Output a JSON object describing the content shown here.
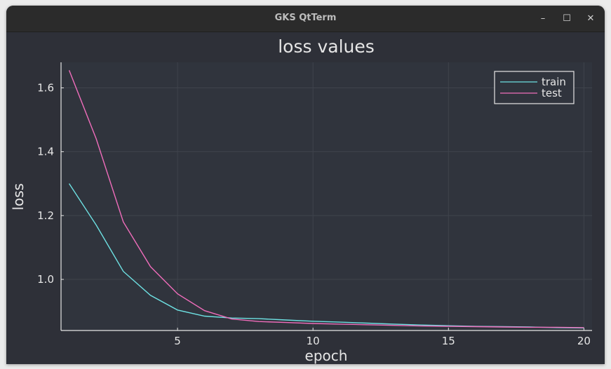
{
  "window": {
    "title": "GKS QtTerm",
    "controls": {
      "minimize": "–",
      "maximize": "☐",
      "close": "✕"
    }
  },
  "colors": {
    "plot_bg": "#30343d",
    "axes_fg": "#e6e6e6",
    "grid": "#3f434c",
    "train": "#6ee1e3",
    "test": "#ef6dbb"
  },
  "chart_data": {
    "type": "line",
    "title": "loss values",
    "xlabel": "epoch",
    "ylabel": "loss",
    "xlim": [
      0.7,
      20.3
    ],
    "ylim": [
      0.84,
      1.68
    ],
    "xticks": [
      5,
      10,
      15,
      20
    ],
    "yticks": [
      1.0,
      1.2,
      1.4,
      1.6
    ],
    "ytick_labels": [
      "1.0",
      "1.2",
      "1.4",
      "1.6"
    ],
    "grid": true,
    "legend": "top-right",
    "x": [
      1,
      2,
      3,
      4,
      5,
      6,
      7,
      8,
      9,
      10,
      11,
      12,
      13,
      14,
      15,
      16,
      17,
      18,
      19,
      20
    ],
    "series": [
      {
        "name": "train",
        "color": "#6ee1e3",
        "values": [
          1.3,
          1.17,
          1.025,
          0.95,
          0.904,
          0.885,
          0.879,
          0.877,
          0.873,
          0.869,
          0.866,
          0.863,
          0.86,
          0.857,
          0.855,
          0.853,
          0.852,
          0.851,
          0.849,
          0.848
        ]
      },
      {
        "name": "test",
        "color": "#ef6dbb",
        "values": [
          1.655,
          1.44,
          1.18,
          1.04,
          0.955,
          0.902,
          0.876,
          0.868,
          0.865,
          0.862,
          0.86,
          0.858,
          0.856,
          0.854,
          0.853,
          0.852,
          0.851,
          0.85,
          0.85,
          0.849
        ]
      }
    ]
  }
}
